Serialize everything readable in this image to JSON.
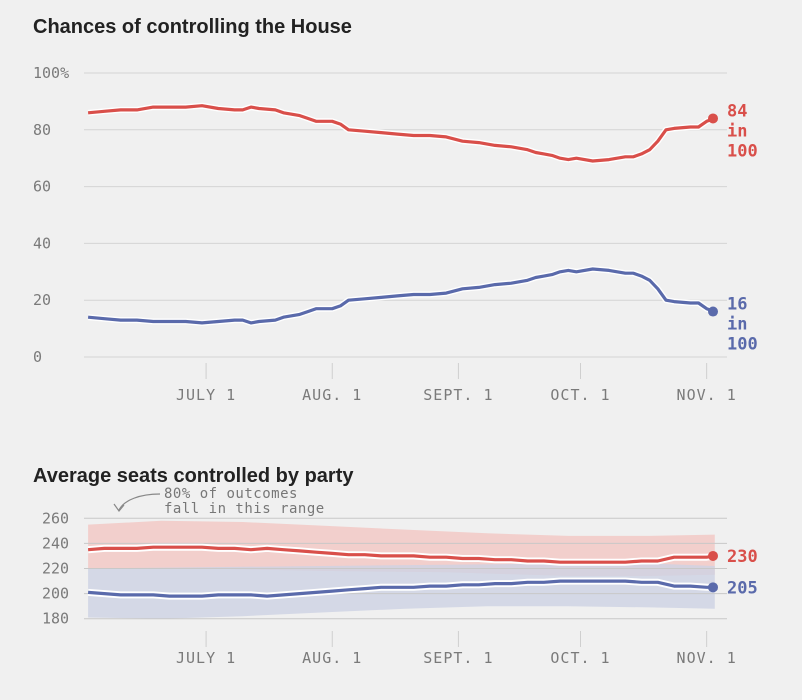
{
  "chart_data": [
    {
      "type": "line",
      "title": "Chances of controlling the House",
      "ylim": [
        0,
        100
      ],
      "y_ticks": [
        "100%",
        "80",
        "60",
        "40",
        "20",
        "0"
      ],
      "y_tick_values": [
        100,
        80,
        60,
        40,
        20,
        0
      ],
      "x_ticks": [
        "JULY 1",
        "AUG. 1",
        "SEPT. 1",
        "OCT. 1",
        "NOV. 1"
      ],
      "x_tick_days": [
        61,
        92,
        123,
        153,
        184
      ],
      "xlim_days": [
        31,
        189
      ],
      "grid": true,
      "series": [
        {
          "color": "#d94f4a",
          "end_label": [
            "84",
            "in",
            "100"
          ],
          "values": [
            [
              32,
              86
            ],
            [
              36,
              86.5
            ],
            [
              40,
              87
            ],
            [
              44,
              87
            ],
            [
              48,
              88
            ],
            [
              52,
              88
            ],
            [
              56,
              88
            ],
            [
              60,
              88.5
            ],
            [
              64,
              87.5
            ],
            [
              68,
              87
            ],
            [
              70,
              87
            ],
            [
              72,
              88
            ],
            [
              74,
              87.5
            ],
            [
              78,
              87
            ],
            [
              80,
              86
            ],
            [
              84,
              85
            ],
            [
              86,
              84
            ],
            [
              88,
              83
            ],
            [
              92,
              83
            ],
            [
              94,
              82
            ],
            [
              96,
              80
            ],
            [
              100,
              79.5
            ],
            [
              104,
              79
            ],
            [
              108,
              78.5
            ],
            [
              112,
              78
            ],
            [
              116,
              78
            ],
            [
              120,
              77.5
            ],
            [
              124,
              76
            ],
            [
              128,
              75.5
            ],
            [
              132,
              74.5
            ],
            [
              136,
              74
            ],
            [
              140,
              73
            ],
            [
              142,
              72
            ],
            [
              144,
              71.5
            ],
            [
              146,
              71
            ],
            [
              148,
              70
            ],
            [
              150,
              69.5
            ],
            [
              152,
              70
            ],
            [
              156,
              69
            ],
            [
              160,
              69.5
            ],
            [
              162,
              70
            ],
            [
              164,
              70.5
            ],
            [
              166,
              70.5
            ],
            [
              168,
              71.5
            ],
            [
              170,
              73
            ],
            [
              172,
              76
            ],
            [
              174,
              80
            ],
            [
              176,
              80.5
            ],
            [
              180,
              81
            ],
            [
              182,
              81
            ],
            [
              184,
              83
            ],
            [
              186,
              84
            ]
          ]
        },
        {
          "color": "#5a6aab",
          "end_label": [
            "16",
            "in",
            "100"
          ],
          "values": [
            [
              32,
              14
            ],
            [
              36,
              13.5
            ],
            [
              40,
              13
            ],
            [
              44,
              13
            ],
            [
              48,
              12.5
            ],
            [
              52,
              12.5
            ],
            [
              56,
              12.5
            ],
            [
              60,
              12
            ],
            [
              64,
              12.5
            ],
            [
              68,
              13
            ],
            [
              70,
              13
            ],
            [
              72,
              12
            ],
            [
              74,
              12.5
            ],
            [
              78,
              13
            ],
            [
              80,
              14
            ],
            [
              84,
              15
            ],
            [
              86,
              16
            ],
            [
              88,
              17
            ],
            [
              92,
              17
            ],
            [
              94,
              18
            ],
            [
              96,
              20
            ],
            [
              100,
              20.5
            ],
            [
              104,
              21
            ],
            [
              108,
              21.5
            ],
            [
              112,
              22
            ],
            [
              116,
              22
            ],
            [
              120,
              22.5
            ],
            [
              124,
              24
            ],
            [
              128,
              24.5
            ],
            [
              132,
              25.5
            ],
            [
              136,
              26
            ],
            [
              140,
              27
            ],
            [
              142,
              28
            ],
            [
              144,
              28.5
            ],
            [
              146,
              29
            ],
            [
              148,
              30
            ],
            [
              150,
              30.5
            ],
            [
              152,
              30
            ],
            [
              156,
              31
            ],
            [
              160,
              30.5
            ],
            [
              162,
              30
            ],
            [
              164,
              29.5
            ],
            [
              166,
              29.5
            ],
            [
              168,
              28.5
            ],
            [
              170,
              27
            ],
            [
              172,
              24
            ],
            [
              174,
              20
            ],
            [
              176,
              19.5
            ],
            [
              180,
              19
            ],
            [
              182,
              19
            ],
            [
              184,
              17
            ],
            [
              186,
              16
            ]
          ]
        }
      ]
    },
    {
      "type": "area",
      "title": "Average seats controlled by party",
      "annotation": [
        "80% of outcomes",
        "fall in this range"
      ],
      "ylim": [
        175,
        265
      ],
      "y_ticks": [
        "260",
        "240",
        "220",
        "200",
        "180"
      ],
      "y_tick_values": [
        260,
        240,
        220,
        200,
        180
      ],
      "x_ticks": [
        "JULY 1",
        "AUG. 1",
        "SEPT. 1",
        "OCT. 1",
        "NOV. 1"
      ],
      "x_tick_days": [
        61,
        92,
        123,
        153,
        184
      ],
      "xlim_days": [
        31,
        189
      ],
      "grid": true,
      "series": [
        {
          "color": "#d94f4a",
          "band_color": "#f2c9c6",
          "end_label": "230",
          "values": [
            [
              32,
              235
            ],
            [
              36,
              236
            ],
            [
              40,
              236
            ],
            [
              44,
              236
            ],
            [
              48,
              237
            ],
            [
              52,
              237
            ],
            [
              56,
              237
            ],
            [
              60,
              237
            ],
            [
              64,
              236
            ],
            [
              68,
              236
            ],
            [
              72,
              235
            ],
            [
              76,
              236
            ],
            [
              80,
              235
            ],
            [
              84,
              234
            ],
            [
              88,
              233
            ],
            [
              92,
              232
            ],
            [
              96,
              231
            ],
            [
              100,
              231
            ],
            [
              104,
              230
            ],
            [
              108,
              230
            ],
            [
              112,
              230
            ],
            [
              116,
              229
            ],
            [
              120,
              229
            ],
            [
              124,
              228
            ],
            [
              128,
              228
            ],
            [
              132,
              227
            ],
            [
              136,
              227
            ],
            [
              140,
              226
            ],
            [
              144,
              226
            ],
            [
              148,
              225
            ],
            [
              152,
              225
            ],
            [
              156,
              225
            ],
            [
              160,
              225
            ],
            [
              164,
              225
            ],
            [
              168,
              226
            ],
            [
              172,
              226
            ],
            [
              176,
              229
            ],
            [
              180,
              229
            ],
            [
              184,
              229
            ],
            [
              186,
              230
            ]
          ],
          "band_low": [
            [
              32,
              220
            ],
            [
              60,
              220
            ],
            [
              90,
              218
            ],
            [
              120,
              217
            ],
            [
              150,
              214
            ],
            [
              170,
              214
            ],
            [
              186,
              215
            ]
          ],
          "band_high": [
            [
              32,
              255
            ],
            [
              50,
              258
            ],
            [
              70,
              257
            ],
            [
              90,
              254
            ],
            [
              110,
              251
            ],
            [
              130,
              248
            ],
            [
              150,
              246
            ],
            [
              170,
              246
            ],
            [
              186,
              247
            ]
          ]
        },
        {
          "color": "#5a6aab",
          "band_color": "#cdd2e3",
          "end_label": "205",
          "values": [
            [
              32,
              201
            ],
            [
              36,
              200
            ],
            [
              40,
              199
            ],
            [
              44,
              199
            ],
            [
              48,
              199
            ],
            [
              52,
              198
            ],
            [
              56,
              198
            ],
            [
              60,
              198
            ],
            [
              64,
              199
            ],
            [
              68,
              199
            ],
            [
              72,
              199
            ],
            [
              76,
              198
            ],
            [
              80,
              199
            ],
            [
              84,
              200
            ],
            [
              88,
              201
            ],
            [
              92,
              202
            ],
            [
              96,
              203
            ],
            [
              100,
              204
            ],
            [
              104,
              205
            ],
            [
              108,
              205
            ],
            [
              112,
              205
            ],
            [
              116,
              206
            ],
            [
              120,
              206
            ],
            [
              124,
              207
            ],
            [
              128,
              207
            ],
            [
              132,
              208
            ],
            [
              136,
              208
            ],
            [
              140,
              209
            ],
            [
              144,
              209
            ],
            [
              148,
              210
            ],
            [
              152,
              210
            ],
            [
              156,
              210
            ],
            [
              160,
              210
            ],
            [
              164,
              210
            ],
            [
              168,
              209
            ],
            [
              172,
              209
            ],
            [
              176,
              206
            ],
            [
              180,
              206
            ],
            [
              184,
              205
            ],
            [
              186,
              205
            ]
          ],
          "band_low": [
            [
              32,
              181
            ],
            [
              50,
              180
            ],
            [
              70,
              182
            ],
            [
              90,
              185
            ],
            [
              110,
              188
            ],
            [
              130,
              190
            ],
            [
              150,
              190
            ],
            [
              170,
              189
            ],
            [
              186,
              188
            ]
          ],
          "band_high": [
            [
              32,
              220
            ],
            [
              60,
              221
            ],
            [
              90,
              222
            ],
            [
              120,
              223
            ],
            [
              150,
              224
            ],
            [
              170,
              224
            ],
            [
              186,
              222
            ]
          ]
        }
      ]
    }
  ]
}
